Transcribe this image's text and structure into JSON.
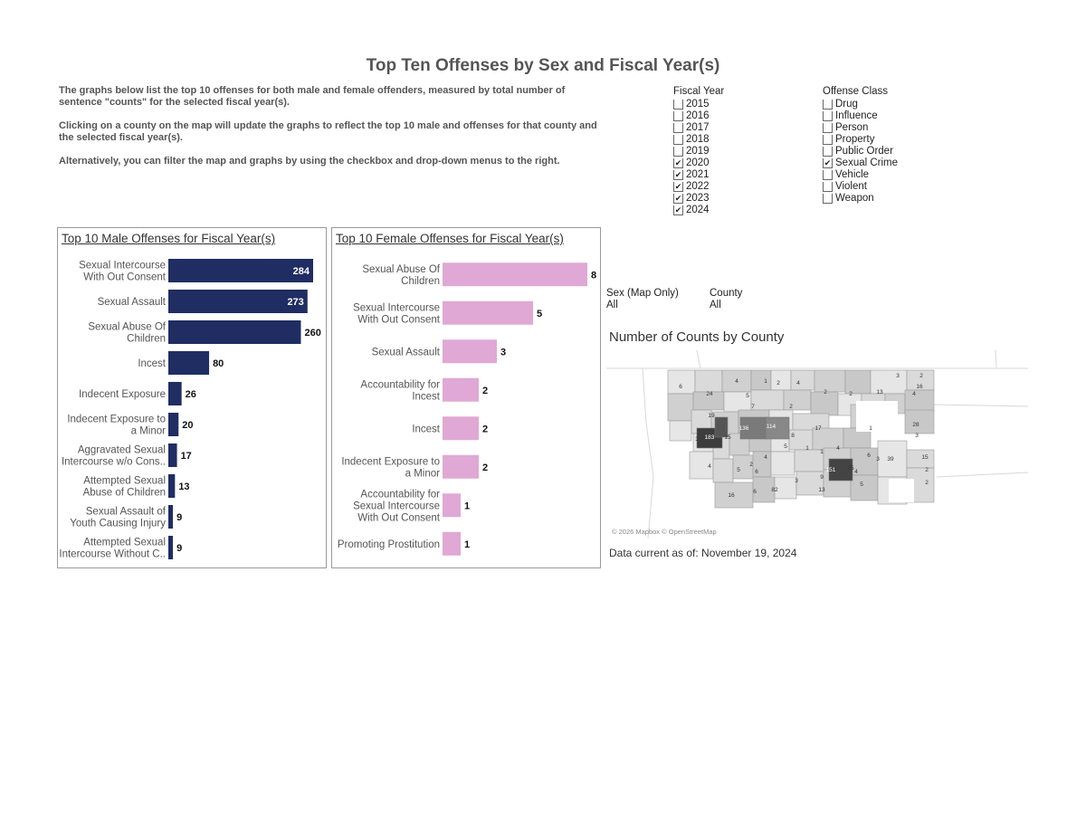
{
  "page": {
    "title": "Top Ten Offenses by Sex and Fiscal Year(s)",
    "intro": [
      "The graphs below list the top 10 offenses for both male and female offenders, measured by total number of sentence \"counts\" for the selected fiscal year(s).",
      "Clicking on a county on the map will update the graphs to reflect the top 10 male and offenses for that county and the selected fiscal year(s).",
      "Alternatively, you can filter the map and graphs by using the checkbox and drop-down menus to the right."
    ]
  },
  "filters": {
    "fiscal_year": {
      "title": "Fiscal Year",
      "options": [
        {
          "label": "2015",
          "checked": false
        },
        {
          "label": "2016",
          "checked": false
        },
        {
          "label": "2017",
          "checked": false
        },
        {
          "label": "2018",
          "checked": false
        },
        {
          "label": "2019",
          "checked": false
        },
        {
          "label": "2020",
          "checked": true
        },
        {
          "label": "2021",
          "checked": true
        },
        {
          "label": "2022",
          "checked": true
        },
        {
          "label": "2023",
          "checked": true
        },
        {
          "label": "2024",
          "checked": true
        }
      ]
    },
    "offense_class": {
      "title": "Offense Class",
      "options": [
        {
          "label": "Drug",
          "checked": false
        },
        {
          "label": "Influence",
          "checked": false
        },
        {
          "label": "Person",
          "checked": false
        },
        {
          "label": "Property",
          "checked": false
        },
        {
          "label": "Public Order",
          "checked": false
        },
        {
          "label": "Sexual Crime",
          "checked": true
        },
        {
          "label": "Vehicle",
          "checked": false
        },
        {
          "label": "Violent",
          "checked": false
        },
        {
          "label": "Weapon",
          "checked": false
        }
      ]
    },
    "sex": {
      "label": "Sex (Map Only)",
      "value": "All"
    },
    "county": {
      "label": "County",
      "value": "All"
    }
  },
  "map": {
    "title": "Number of Counts by County",
    "credit": "© 2026 Mapbox © OpenStreetMap",
    "data_current": "Data current as of: November 19, 2024",
    "county_labels": [
      "4",
      "1",
      "2",
      "4",
      "3",
      "2",
      "6",
      "24",
      "5",
      "2",
      "2",
      "13",
      "4",
      "16",
      "7",
      "2",
      "19",
      "28",
      "3",
      "136",
      "114",
      "17",
      "1",
      "183",
      "15",
      "3",
      "8",
      "5",
      "1",
      "1",
      "4",
      "6",
      "39",
      "4",
      "2",
      "4",
      "25",
      "3",
      "15",
      "5",
      "6",
      "9",
      "151",
      "3",
      "4",
      "2",
      "16",
      "6",
      "82",
      "13",
      "5",
      "2"
    ]
  },
  "chart_data": [
    {
      "type": "bar",
      "orientation": "horizontal",
      "title": "Top 10 Male Offenses for Fiscal Year(s)",
      "categories": [
        [
          "Sexual Intercourse",
          "With Out Consent"
        ],
        [
          "Sexual Assault"
        ],
        [
          "Sexual Abuse Of",
          "Children"
        ],
        [
          "Incest"
        ],
        [
          "Indecent Exposure"
        ],
        [
          "Indecent Exposure to",
          "a Minor"
        ],
        [
          "Aggravated Sexual",
          "Intercourse w/o Cons.."
        ],
        [
          "Attempted Sexual",
          "Abuse of Children"
        ],
        [
          "Sexual Assault of",
          "Youth Causing Injury"
        ],
        [
          "Attempted Sexual",
          "Intercourse Without C.."
        ]
      ],
      "values": [
        284,
        273,
        260,
        80,
        26,
        20,
        17,
        13,
        9,
        9
      ],
      "color": "#1f2d63"
    },
    {
      "type": "bar",
      "orientation": "horizontal",
      "title": "Top 10 Female Offenses for Fiscal Year(s)",
      "categories": [
        [
          "Sexual Abuse Of",
          "Children"
        ],
        [
          "Sexual Intercourse",
          "With Out Consent"
        ],
        [
          "Sexual Assault"
        ],
        [
          "Accountability for",
          "Incest"
        ],
        [
          "Incest"
        ],
        [
          "Indecent Exposure to",
          "a Minor"
        ],
        [
          "Accountability for",
          "Sexual Intercourse",
          "With Out Consent"
        ],
        [
          "Promoting Prostitution"
        ]
      ],
      "values": [
        8,
        5,
        3,
        2,
        2,
        2,
        1,
        1
      ],
      "color": "#e0a8d4"
    }
  ]
}
